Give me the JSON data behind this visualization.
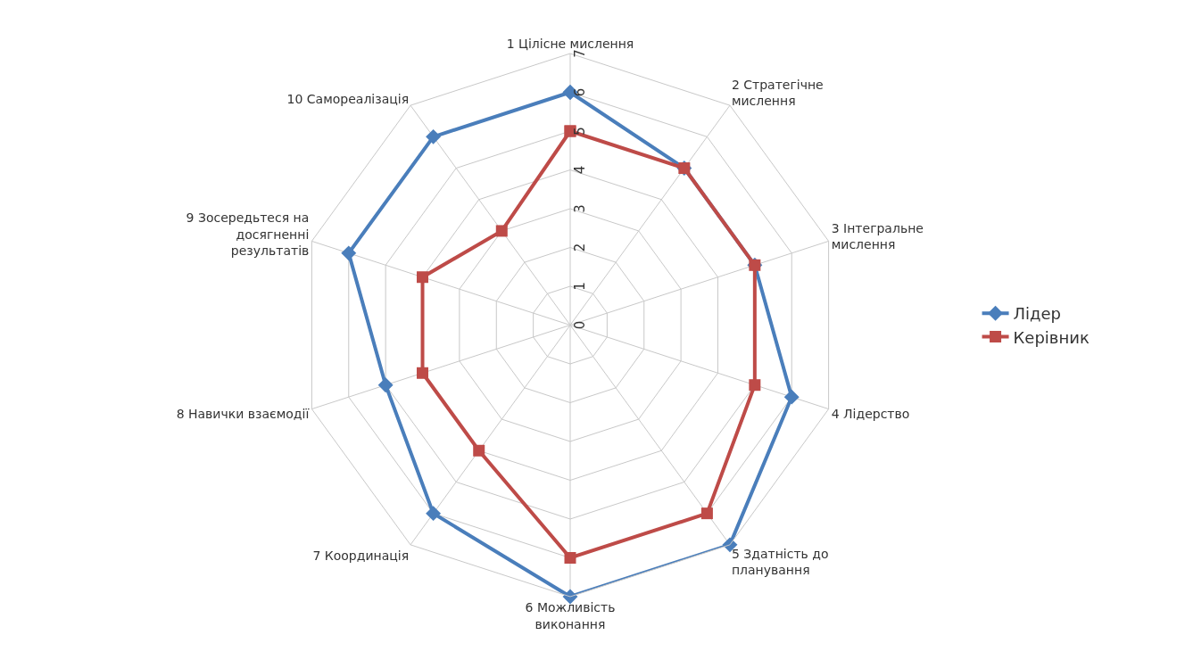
{
  "chart_data": {
    "type": "radar",
    "categories": [
      "1 Цілісне мислення",
      "2 Стратегічне\nмислення",
      "3 Інтегральне\nмислення",
      "4 Лідерство",
      "5 Здатність до\nпланування",
      "6 Можливість\nвиконання",
      "7 Координація",
      "8 Навички взаємодії",
      "9 Зосередьтеся на\nдосягненні\nрезультатів",
      "10 Самореалізація"
    ],
    "series": [
      {
        "name": "Лідер",
        "color": "#4a7ebb",
        "marker": "diamond",
        "values": [
          6,
          5,
          5,
          6,
          7,
          7,
          6,
          5,
          6,
          6
        ]
      },
      {
        "name": "Керівник",
        "color": "#be4b48",
        "marker": "square",
        "values": [
          5,
          5,
          5,
          5,
          6,
          6,
          4,
          4,
          4,
          3
        ]
      }
    ],
    "ylim": [
      0,
      7
    ],
    "yticks": [
      0,
      1,
      2,
      3,
      4,
      5,
      6,
      7
    ],
    "grid": true,
    "legend": "right"
  }
}
